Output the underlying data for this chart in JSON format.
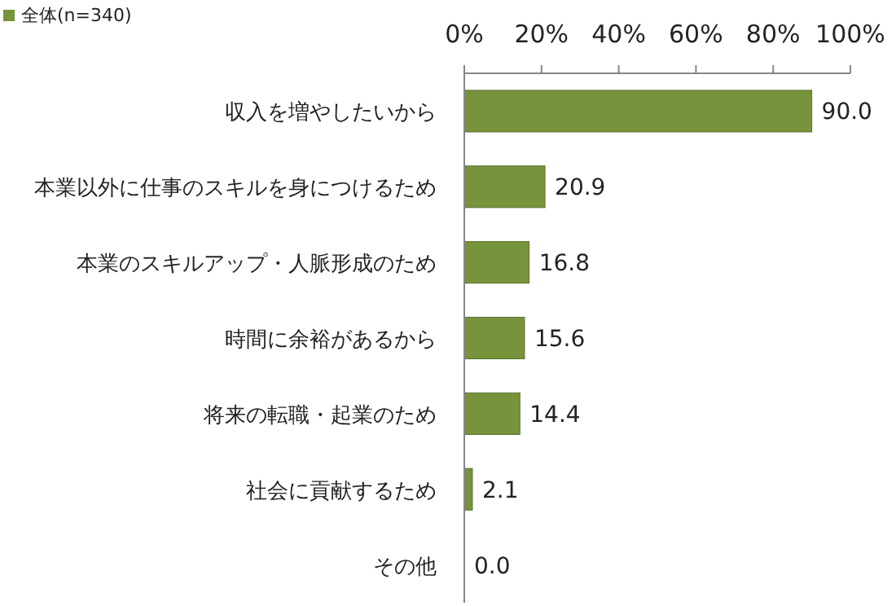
{
  "chart_data": {
    "type": "bar",
    "orientation": "horizontal",
    "categories": [
      "収入を増やしたいから",
      "本業以外に仕事のスキルを身につけるため",
      "本業のスキルアップ・人脈形成のため",
      "時間に余裕があるから",
      "将来の転職・起業のため",
      "社会に貢献するため",
      "その他"
    ],
    "series": [
      {
        "name": "全体(n=340)",
        "color": "#77933c",
        "values": [
          90.0,
          20.9,
          16.8,
          15.6,
          14.4,
          2.1,
          0.0
        ],
        "value_labels": [
          "90.0",
          "20.9",
          "16.8",
          "15.6",
          "14.4",
          "2.1",
          "0.0"
        ]
      }
    ],
    "xlim": [
      0,
      100
    ],
    "xticks": [
      {
        "value": 0,
        "label": "0%"
      },
      {
        "value": 20,
        "label": "20%"
      },
      {
        "value": 40,
        "label": "40%"
      },
      {
        "value": 60,
        "label": "60%"
      },
      {
        "value": 80,
        "label": "80%"
      },
      {
        "value": 100,
        "label": "100%"
      }
    ],
    "legend": "top left"
  }
}
